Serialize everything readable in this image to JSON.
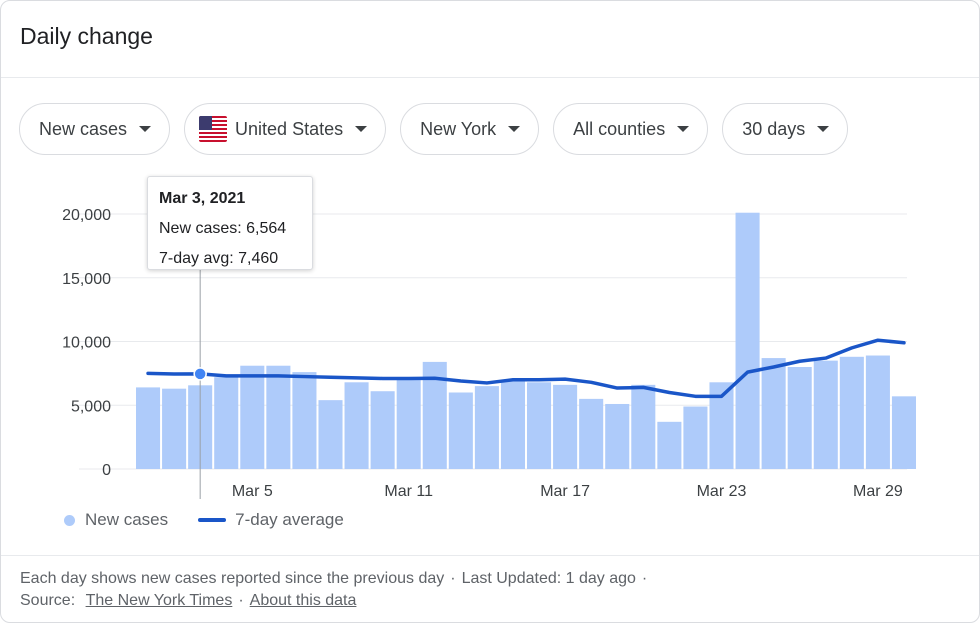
{
  "header": {
    "title": "Daily change"
  },
  "filters": [
    {
      "label": "New cases",
      "flag": false
    },
    {
      "label": "United States",
      "flag": true
    },
    {
      "label": "New York",
      "flag": false
    },
    {
      "label": "All counties",
      "flag": false
    },
    {
      "label": "30 days",
      "flag": false
    }
  ],
  "tooltip": {
    "date": "Mar 3, 2021",
    "new_cases": "New cases: 6,564",
    "avg": "7-day avg: 7,460"
  },
  "legend": {
    "bars": "New cases",
    "line": "7-day average"
  },
  "footer": {
    "line1": "Each day shows new cases reported since the previous day",
    "updated": "Last Updated: 1 day ago",
    "source_label": "Source:",
    "source_link": "The New York Times",
    "about_link": "About this data"
  },
  "colors": {
    "bar": "#aecbfa",
    "line": "#1a56c8",
    "accent_dot": "#4285f4"
  },
  "icons": {
    "flag": "us-flag-icon",
    "caret": "caret-down-icon"
  },
  "chart_data": {
    "type": "bar",
    "categories": [
      "Mar 1",
      "Mar 2",
      "Mar 3",
      "Mar 4",
      "Mar 5",
      "Mar 6",
      "Mar 7",
      "Mar 8",
      "Mar 9",
      "Mar 10",
      "Mar 11",
      "Mar 12",
      "Mar 13",
      "Mar 14",
      "Mar 15",
      "Mar 16",
      "Mar 17",
      "Mar 18",
      "Mar 19",
      "Mar 20",
      "Mar 21",
      "Mar 22",
      "Mar 23",
      "Mar 24",
      "Mar 25",
      "Mar 26",
      "Mar 27",
      "Mar 28",
      "Mar 29",
      "Mar 30"
    ],
    "series": [
      {
        "name": "New cases",
        "type": "bar",
        "values": [
          6400,
          6300,
          6564,
          7200,
          8100,
          8100,
          7600,
          5400,
          6800,
          6100,
          7000,
          8400,
          6000,
          6500,
          6900,
          6800,
          6600,
          5500,
          5100,
          6600,
          3700,
          4900,
          6800,
          20100,
          8700,
          8000,
          8500,
          8800,
          8900,
          5700
        ]
      },
      {
        "name": "7-day average",
        "type": "line",
        "values": [
          7500,
          7450,
          7460,
          7300,
          7300,
          7300,
          7250,
          7200,
          7150,
          7100,
          7100,
          7120,
          6900,
          6750,
          7000,
          7000,
          7050,
          6800,
          6350,
          6400,
          6000,
          5700,
          5700,
          7600,
          8000,
          8450,
          8700,
          9500,
          10100,
          9900
        ]
      }
    ],
    "x_tick_labels": [
      "Mar 5",
      "Mar 11",
      "Mar 17",
      "Mar 23",
      "Mar 29"
    ],
    "y_ticks": [
      0,
      5000,
      10000,
      15000,
      20000
    ],
    "y_tick_labels": [
      "0",
      "5,000",
      "10,000",
      "15,000",
      "20,000"
    ],
    "ylim": [
      0,
      20000
    ],
    "highlight_index": 2,
    "grid": true,
    "legend_position": "bottom-left"
  }
}
